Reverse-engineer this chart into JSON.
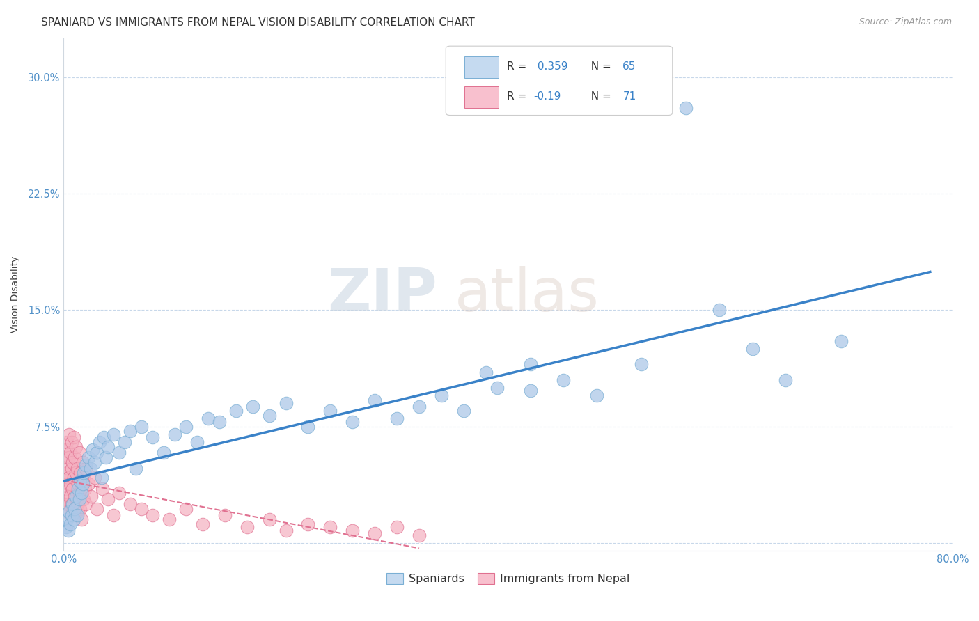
{
  "title": "SPANIARD VS IMMIGRANTS FROM NEPAL VISION DISABILITY CORRELATION CHART",
  "source": "Source: ZipAtlas.com",
  "ylabel": "Vision Disability",
  "xlim": [
    0.0,
    0.8
  ],
  "ylim": [
    -0.005,
    0.325
  ],
  "yticks": [
    0.0,
    0.075,
    0.15,
    0.225,
    0.3
  ],
  "ytick_labels": [
    "",
    "7.5%",
    "15.0%",
    "22.5%",
    "30.0%"
  ],
  "spaniards_R": 0.359,
  "spaniards_N": 65,
  "nepal_R": -0.19,
  "nepal_N": 71,
  "blue_color": "#adc8e8",
  "blue_edge": "#7aafd4",
  "pink_color": "#f5b0c0",
  "pink_edge": "#e07090",
  "blue_line_color": "#3a82c8",
  "pink_line_color": "#e07090",
  "legend_blue_face": "#c5daf0",
  "legend_pink_face": "#f8c0ce",
  "background_color": "#ffffff",
  "grid_color": "#c8d8ea",
  "watermark_zip": "ZIP",
  "watermark_atlas": "atlas",
  "title_fontsize": 11,
  "axis_label_fontsize": 10,
  "tick_fontsize": 10.5,
  "spaniards_x": [
    0.002,
    0.003,
    0.004,
    0.005,
    0.006,
    0.007,
    0.008,
    0.009,
    0.01,
    0.011,
    0.012,
    0.013,
    0.014,
    0.015,
    0.016,
    0.017,
    0.018,
    0.02,
    0.022,
    0.024,
    0.026,
    0.028,
    0.03,
    0.032,
    0.034,
    0.036,
    0.038,
    0.04,
    0.045,
    0.05,
    0.055,
    0.06,
    0.065,
    0.07,
    0.08,
    0.09,
    0.1,
    0.11,
    0.12,
    0.13,
    0.14,
    0.155,
    0.17,
    0.185,
    0.2,
    0.22,
    0.24,
    0.26,
    0.28,
    0.3,
    0.32,
    0.34,
    0.36,
    0.39,
    0.42,
    0.45,
    0.48,
    0.52,
    0.56,
    0.59,
    0.38,
    0.42,
    0.62,
    0.65,
    0.7
  ],
  "spaniards_y": [
    0.01,
    0.015,
    0.008,
    0.02,
    0.012,
    0.018,
    0.025,
    0.015,
    0.022,
    0.03,
    0.018,
    0.035,
    0.028,
    0.04,
    0.032,
    0.038,
    0.045,
    0.05,
    0.055,
    0.048,
    0.06,
    0.052,
    0.058,
    0.065,
    0.042,
    0.068,
    0.055,
    0.062,
    0.07,
    0.058,
    0.065,
    0.072,
    0.048,
    0.075,
    0.068,
    0.058,
    0.07,
    0.075,
    0.065,
    0.08,
    0.078,
    0.085,
    0.088,
    0.082,
    0.09,
    0.075,
    0.085,
    0.078,
    0.092,
    0.08,
    0.088,
    0.095,
    0.085,
    0.1,
    0.098,
    0.105,
    0.095,
    0.115,
    0.28,
    0.15,
    0.11,
    0.115,
    0.125,
    0.105,
    0.13
  ],
  "nepal_x": [
    0.001,
    0.001,
    0.002,
    0.002,
    0.002,
    0.003,
    0.003,
    0.003,
    0.004,
    0.004,
    0.004,
    0.005,
    0.005,
    0.005,
    0.005,
    0.006,
    0.006,
    0.006,
    0.007,
    0.007,
    0.007,
    0.008,
    0.008,
    0.008,
    0.009,
    0.009,
    0.01,
    0.01,
    0.01,
    0.011,
    0.011,
    0.012,
    0.012,
    0.013,
    0.013,
    0.014,
    0.014,
    0.015,
    0.015,
    0.016,
    0.016,
    0.017,
    0.018,
    0.018,
    0.019,
    0.02,
    0.02,
    0.022,
    0.025,
    0.028,
    0.03,
    0.035,
    0.04,
    0.045,
    0.05,
    0.06,
    0.07,
    0.08,
    0.095,
    0.11,
    0.125,
    0.145,
    0.165,
    0.185,
    0.2,
    0.22,
    0.24,
    0.26,
    0.28,
    0.3,
    0.32
  ],
  "nepal_y": [
    0.025,
    0.04,
    0.055,
    0.035,
    0.06,
    0.045,
    0.02,
    0.065,
    0.03,
    0.048,
    0.038,
    0.055,
    0.025,
    0.07,
    0.042,
    0.03,
    0.058,
    0.038,
    0.048,
    0.025,
    0.065,
    0.035,
    0.052,
    0.02,
    0.042,
    0.068,
    0.03,
    0.055,
    0.018,
    0.045,
    0.062,
    0.025,
    0.048,
    0.038,
    0.02,
    0.058,
    0.032,
    0.045,
    0.022,
    0.038,
    0.015,
    0.052,
    0.028,
    0.042,
    0.035,
    0.025,
    0.048,
    0.038,
    0.03,
    0.042,
    0.022,
    0.035,
    0.028,
    0.018,
    0.032,
    0.025,
    0.022,
    0.018,
    0.015,
    0.022,
    0.012,
    0.018,
    0.01,
    0.015,
    0.008,
    0.012,
    0.01,
    0.008,
    0.006,
    0.01,
    0.005
  ]
}
